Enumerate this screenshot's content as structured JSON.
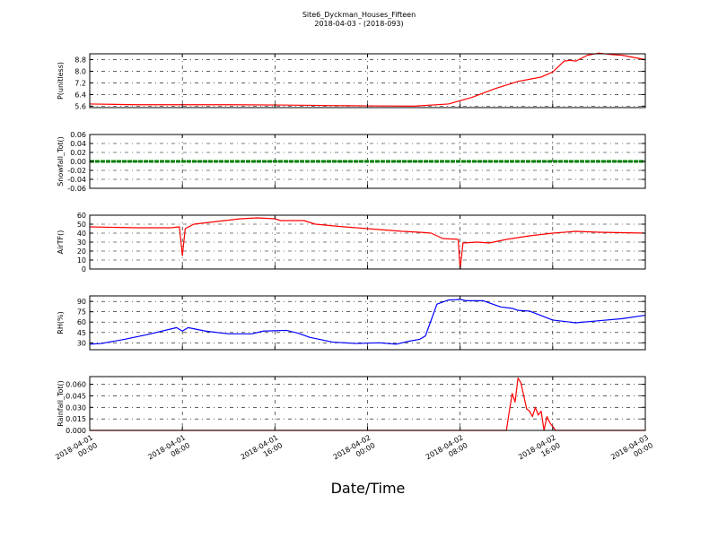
{
  "header": {
    "title": "Site6_Dyckman_Houses_Fifteen",
    "subtitle": "2018-04-03 - (2018-093)"
  },
  "xlabel": "Date/Time",
  "x_ticks": [
    {
      "t": 0,
      "l1": "2018-04-01",
      "l2": "00:00"
    },
    {
      "t": 8,
      "l1": "2018-04-01",
      "l2": "08:00"
    },
    {
      "t": 16,
      "l1": "2018-04-01",
      "l2": "16:00"
    },
    {
      "t": 24,
      "l1": "2018-04-02",
      "l2": "00:00"
    },
    {
      "t": 32,
      "l1": "2018-04-02",
      "l2": "08:00"
    },
    {
      "t": 40,
      "l1": "2018-04-02",
      "l2": "16:00"
    },
    {
      "t": 48,
      "l1": "2018-04-03",
      "l2": "00:00"
    }
  ],
  "chart_data": [
    {
      "type": "line",
      "ylabel": "P(unitless)",
      "ylim": [
        5.5,
        9.2
      ],
      "yticks": [
        5.6,
        6.4,
        7.2,
        8.0,
        8.8
      ],
      "tick_decimals": 1,
      "grid": true,
      "color": "#ff0000",
      "x_range": [
        "2018-04-01 00:00",
        "2018-04-03 00:00"
      ],
      "x": [
        "2018-04-01 00:00",
        "2018-04-01 04:00",
        "2018-04-01 08:00",
        "2018-04-01 12:00",
        "2018-04-01 16:00",
        "2018-04-01 20:00",
        "2018-04-02 00:00",
        "2018-04-02 04:00",
        "2018-04-02 07:00",
        "2018-04-02 09:00",
        "2018-04-02 11:00",
        "2018-04-02 13:00",
        "2018-04-02 14:00",
        "2018-04-02 15:00",
        "2018-04-02 16:00",
        "2018-04-02 17:00",
        "2018-04-02 17:30",
        "2018-04-02 18:00",
        "2018-04-02 19:00",
        "2018-04-02 20:00",
        "2018-04-02 21:00",
        "2018-04-02 22:00",
        "2018-04-03 00:00"
      ],
      "y": [
        5.75,
        5.7,
        5.7,
        5.7,
        5.68,
        5.65,
        5.62,
        5.6,
        5.75,
        6.2,
        6.8,
        7.3,
        7.45,
        7.6,
        7.95,
        8.7,
        8.75,
        8.7,
        9.1,
        9.25,
        9.15,
        9.1,
        8.8
      ]
    },
    {
      "type": "line",
      "ylabel": "Snowfall_Tot()",
      "ylim": [
        -0.06,
        0.06
      ],
      "yticks": [
        -0.06,
        -0.04,
        -0.02,
        0.0,
        0.02,
        0.04,
        0.06
      ],
      "tick_decimals": 2,
      "grid": true,
      "color": "#008000",
      "line_width": 3,
      "dashed": true,
      "x_range": [
        "2018-04-01 00:00",
        "2018-04-03 00:00"
      ],
      "x": [
        "2018-04-01 00:00",
        "2018-04-03 00:00"
      ],
      "y": [
        0,
        0
      ]
    },
    {
      "type": "line",
      "ylabel": "AirTF()",
      "ylim": [
        0,
        60
      ],
      "yticks": [
        0,
        10,
        20,
        30,
        40,
        50,
        60
      ],
      "tick_decimals": 0,
      "grid": true,
      "color": "#ff0000",
      "x_range": [
        "2018-04-01 00:00",
        "2018-04-03 00:00"
      ],
      "x": [
        "2018-04-01 00:00",
        "2018-04-01 04:00",
        "2018-04-01 07:00",
        "2018-04-01 07:45",
        "2018-04-01 08:00",
        "2018-04-01 08:15",
        "2018-04-01 09:00",
        "2018-04-01 11:00",
        "2018-04-01 13:00",
        "2018-04-01 14:30",
        "2018-04-01 16:00",
        "2018-04-01 16:30",
        "2018-04-01 18:30",
        "2018-04-01 19:30",
        "2018-04-01 22:00",
        "2018-04-02 01:00",
        "2018-04-02 03:00",
        "2018-04-02 04:30",
        "2018-04-02 05:30",
        "2018-04-02 06:30",
        "2018-04-02 07:50",
        "2018-04-02 08:00",
        "2018-04-02 08:15",
        "2018-04-02 09:30",
        "2018-04-02 10:30",
        "2018-04-02 12:00",
        "2018-04-02 14:00",
        "2018-04-02 16:00",
        "2018-04-02 18:00",
        "2018-04-02 20:00",
        "2018-04-03 00:00"
      ],
      "y": [
        47,
        46,
        46,
        47,
        15,
        45,
        50,
        53,
        56,
        57,
        56,
        54,
        54,
        50,
        47,
        44,
        42,
        41,
        40,
        34,
        33,
        0,
        29,
        30,
        29,
        33,
        37,
        40,
        42,
        41,
        40
      ]
    },
    {
      "type": "line",
      "ylabel": "RH(%)",
      "ylim": [
        20,
        98
      ],
      "yticks": [
        30,
        45,
        60,
        75,
        90
      ],
      "tick_decimals": 0,
      "grid": true,
      "color": "#0000ff",
      "x_range": [
        "2018-04-01 00:00",
        "2018-04-03 00:00"
      ],
      "x": [
        "2018-04-01 00:00",
        "2018-04-01 01:00",
        "2018-04-01 03:00",
        "2018-04-01 05:00",
        "2018-04-01 07:30",
        "2018-04-01 08:00",
        "2018-04-01 08:30",
        "2018-04-01 10:00",
        "2018-04-01 12:00",
        "2018-04-01 14:00",
        "2018-04-01 15:00",
        "2018-04-01 17:00",
        "2018-04-01 18:00",
        "2018-04-01 19:00",
        "2018-04-01 21:00",
        "2018-04-01 23:00",
        "2018-04-02 01:00",
        "2018-04-02 02:30",
        "2018-04-02 03:30",
        "2018-04-02 04:30",
        "2018-04-02 05:00",
        "2018-04-02 06:00",
        "2018-04-02 07:00",
        "2018-04-02 08:00",
        "2018-04-02 08:30",
        "2018-04-02 10:00",
        "2018-04-02 11:30",
        "2018-04-02 12:30",
        "2018-04-02 13:00",
        "2018-04-02 14:00",
        "2018-04-02 16:00",
        "2018-04-02 18:00",
        "2018-04-02 20:00",
        "2018-04-02 22:00",
        "2018-04-03 00:00"
      ],
      "y": [
        28,
        29,
        35,
        42,
        52,
        47,
        52,
        47,
        43,
        43,
        47,
        48,
        44,
        38,
        31,
        29,
        30,
        28,
        32,
        35,
        40,
        86,
        92,
        93,
        91,
        91,
        82,
        80,
        77,
        76,
        63,
        59,
        62,
        65,
        70
      ]
    },
    {
      "type": "line",
      "ylabel": "Rainfall_Tot()",
      "ylim": [
        0,
        0.07
      ],
      "yticks": [
        0.0,
        0.015,
        0.03,
        0.045,
        0.06
      ],
      "tick_decimals": 3,
      "grid": true,
      "color": "#ff0000",
      "x_range": [
        "2018-04-01 00:00",
        "2018-04-03 00:00"
      ],
      "x": [
        "2018-04-01 00:00",
        "2018-04-02 12:00",
        "2018-04-02 12:15",
        "2018-04-02 12:30",
        "2018-04-02 12:45",
        "2018-04-02 13:00",
        "2018-04-02 13:15",
        "2018-04-02 13:30",
        "2018-04-02 13:45",
        "2018-04-02 14:00",
        "2018-04-02 14:15",
        "2018-04-02 14:30",
        "2018-04-02 14:45",
        "2018-04-02 15:00",
        "2018-04-02 15:15",
        "2018-04-02 15:30",
        "2018-04-02 15:45",
        "2018-04-02 16:00",
        "2018-04-02 16:15",
        "2018-04-03 00:00"
      ],
      "y": [
        0,
        0,
        0.025,
        0.048,
        0.037,
        0.068,
        0.062,
        0.045,
        0.028,
        0.025,
        0.018,
        0.03,
        0.02,
        0.025,
        0.0,
        0.018,
        0.01,
        0.005,
        0.0,
        0
      ]
    }
  ]
}
